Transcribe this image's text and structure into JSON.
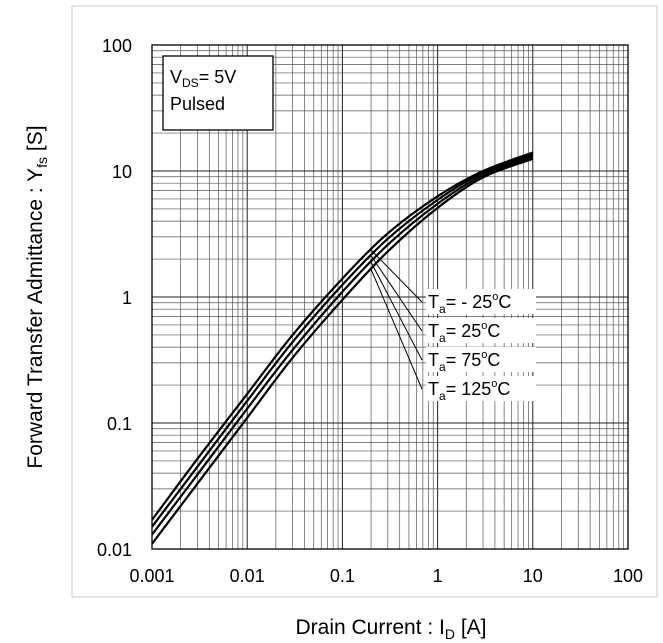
{
  "chart_data": {
    "type": "line",
    "title": "",
    "x_scale": "log",
    "y_scale": "log",
    "xlim": [
      0.001,
      100
    ],
    "ylim": [
      0.01,
      100
    ],
    "grid": true,
    "x_ticks": [
      "0.001",
      "0.01",
      "0.1",
      "1",
      "10",
      "100"
    ],
    "y_ticks": [
      "0.01",
      "0.1",
      "1",
      "10",
      "100"
    ],
    "xlabel": {
      "main": "Drain Current : I",
      "sub": "D",
      "unit": " [A]"
    },
    "ylabel": {
      "main": "Forward Transfer Admittance : Y",
      "sub": "fs",
      "unit": " [S]"
    },
    "conditions": {
      "line1": {
        "prefix": "V",
        "sub": "DS",
        "suffix": "= 5V"
      },
      "line2": "Pulsed"
    },
    "series": [
      {
        "name": "Ta= - 25°C",
        "label": {
          "prefix": "T",
          "sub": "a",
          "suffix": "= - 25",
          "deg": "o",
          "unit": "C"
        },
        "x": [
          0.001,
          0.003,
          0.01,
          0.03,
          0.1,
          0.3,
          1,
          3,
          10
        ],
        "y": [
          0.017,
          0.052,
          0.17,
          0.5,
          1.4,
          3.2,
          6.3,
          10,
          14
        ]
      },
      {
        "name": "Ta= 25°C",
        "label": {
          "prefix": "T",
          "sub": "a",
          "suffix": "= 25",
          "deg": "o",
          "unit": "C"
        },
        "x": [
          0.001,
          0.003,
          0.01,
          0.03,
          0.1,
          0.3,
          1,
          3,
          10
        ],
        "y": [
          0.015,
          0.045,
          0.15,
          0.44,
          1.25,
          2.9,
          5.9,
          9.7,
          13.5
        ]
      },
      {
        "name": "Ta= 75°C",
        "label": {
          "prefix": "T",
          "sub": "a",
          "suffix": "= 75",
          "deg": "o",
          "unit": "C"
        },
        "x": [
          0.001,
          0.003,
          0.01,
          0.03,
          0.1,
          0.3,
          1,
          3,
          10
        ],
        "y": [
          0.013,
          0.039,
          0.13,
          0.38,
          1.1,
          2.6,
          5.5,
          9.3,
          13
        ]
      },
      {
        "name": "Ta= 125°C",
        "label": {
          "prefix": "T",
          "sub": "a",
          "suffix": "= 125",
          "deg": "o",
          "unit": "C"
        },
        "x": [
          0.001,
          0.003,
          0.01,
          0.03,
          0.1,
          0.3,
          1,
          3,
          10
        ],
        "y": [
          0.011,
          0.033,
          0.11,
          0.33,
          0.95,
          2.3,
          5.1,
          8.9,
          12.5
        ]
      }
    ]
  }
}
